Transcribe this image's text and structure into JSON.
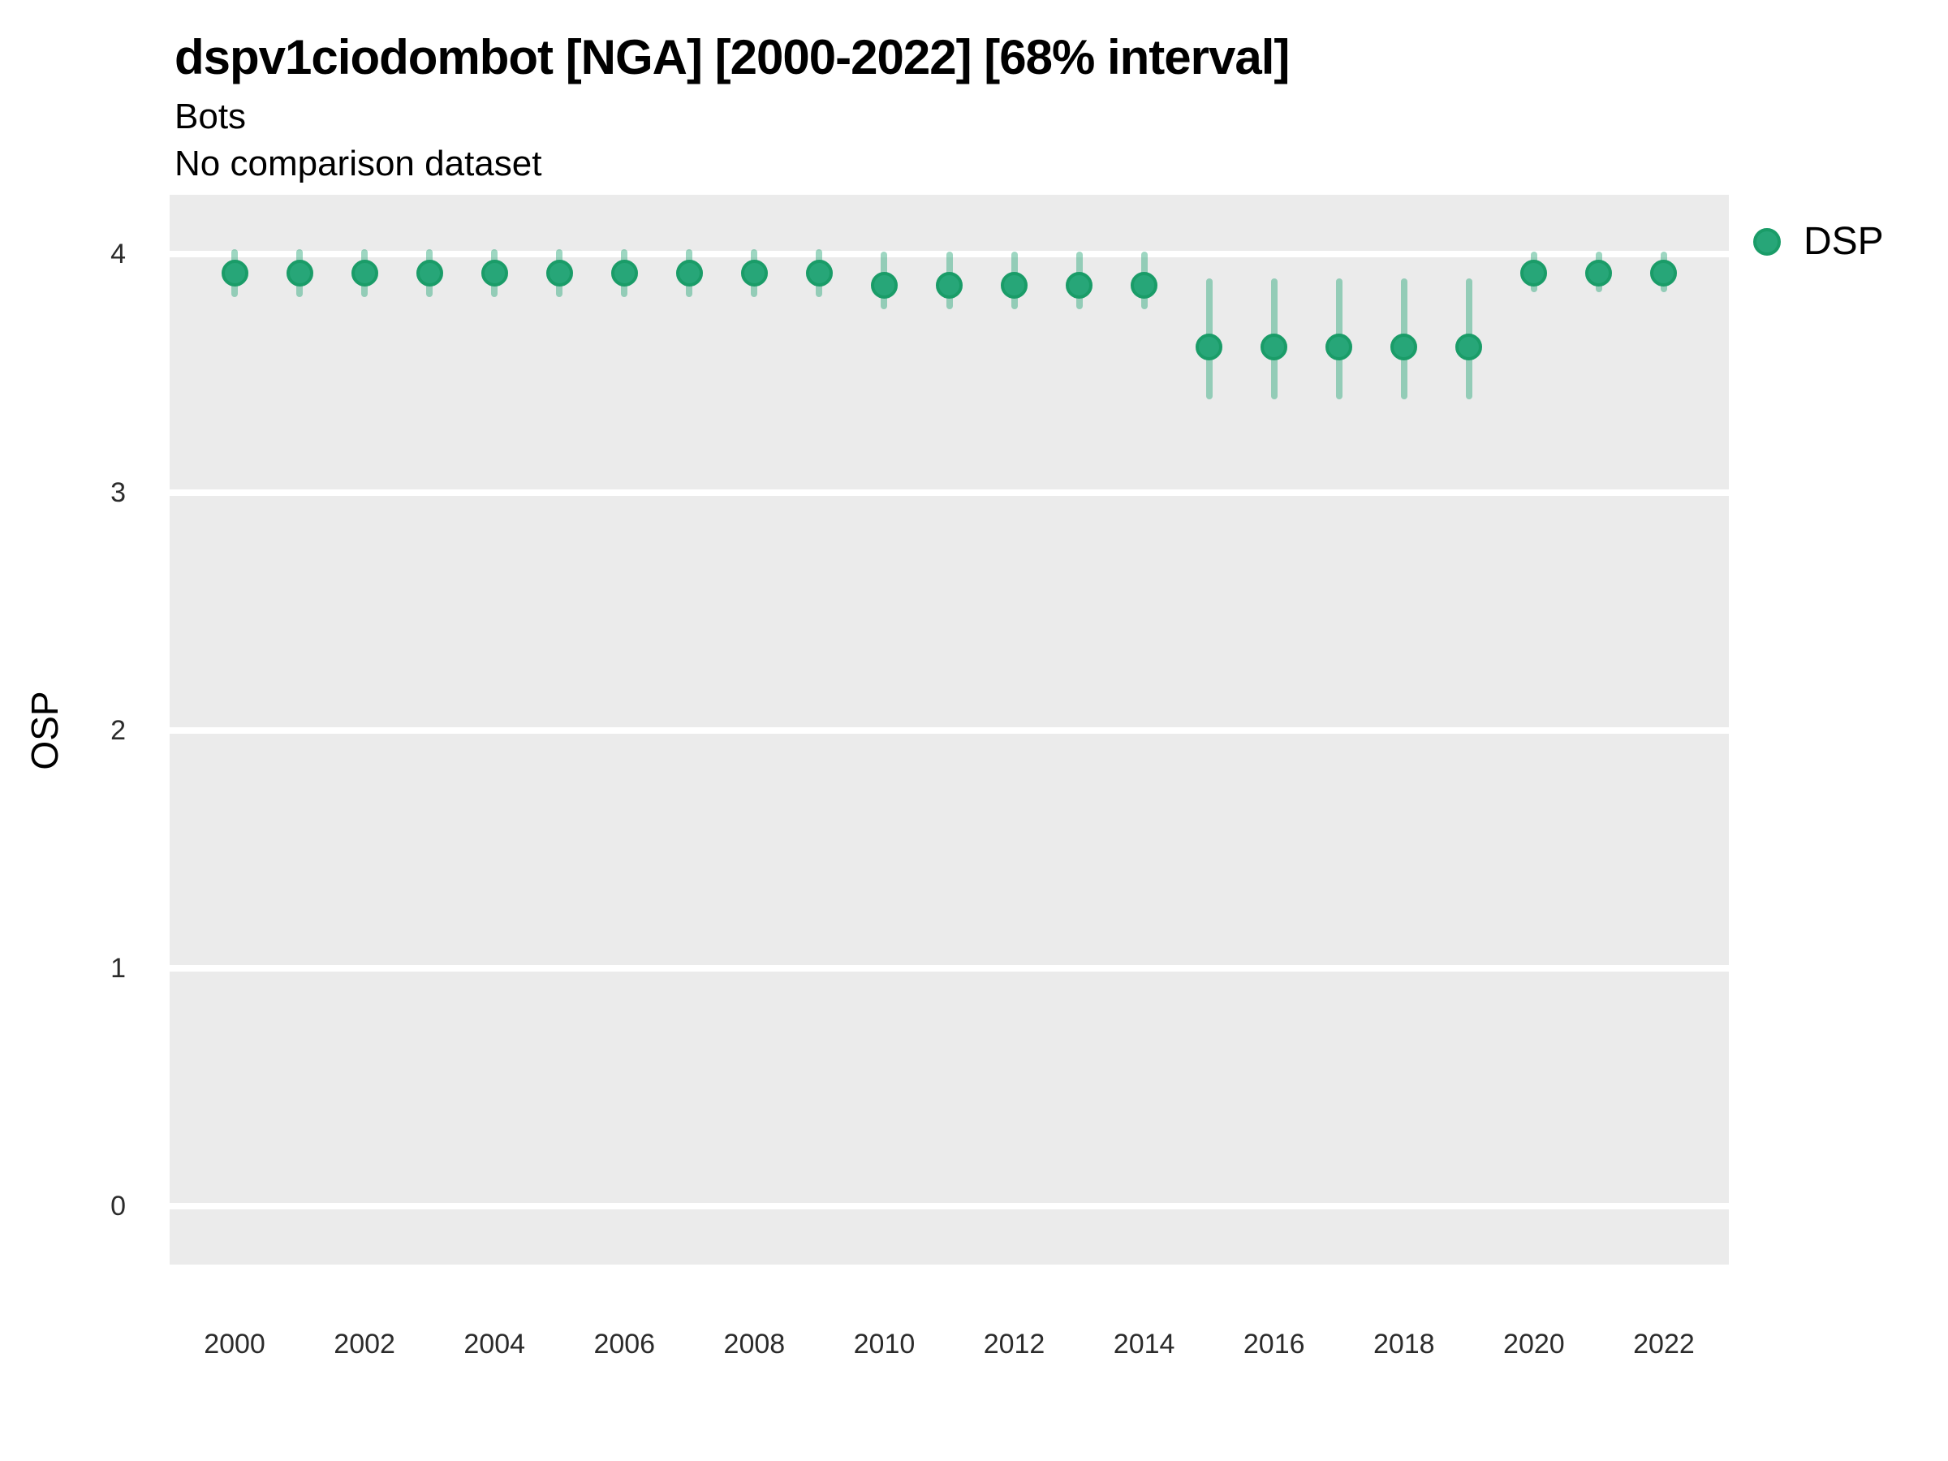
{
  "header": {
    "title": "dspv1ciodombot [NGA] [2000-2022] [68% interval]",
    "subtitle": "Bots",
    "comparison_note": "No comparison dataset"
  },
  "axes": {
    "y_label": "OSP"
  },
  "legend": {
    "items": [
      {
        "label": "DSP",
        "color": "#27a678"
      }
    ]
  },
  "colors": {
    "point_fill": "#27a678",
    "point_border": "#1a9c68",
    "interval_bar": "rgba(39,166,120,0.45)",
    "panel_background": "#ebebeb",
    "gridline": "#ffffff",
    "tick_text": "#2b2b2b"
  },
  "chart_data": {
    "type": "scatter",
    "title": "dspv1ciodombot [NGA] [2000-2022] [68% interval]",
    "subtitle": "Bots",
    "note": "No comparison dataset",
    "xlabel": "",
    "ylabel": "OSP",
    "interval": "68%",
    "grid": "horizontal-major-only",
    "legend_position": "right",
    "xlim": [
      1999.0,
      2023.0
    ],
    "ylim": [
      -0.245,
      4.25
    ],
    "x_ticks": [
      2000,
      2002,
      2004,
      2006,
      2008,
      2010,
      2012,
      2014,
      2016,
      2018,
      2020,
      2022
    ],
    "y_ticks": [
      0,
      1,
      2,
      3,
      4
    ],
    "series": [
      {
        "name": "DSP",
        "x": [
          2000,
          2001,
          2002,
          2003,
          2004,
          2005,
          2006,
          2007,
          2008,
          2009,
          2010,
          2011,
          2012,
          2013,
          2014,
          2015,
          2016,
          2017,
          2018,
          2019,
          2020,
          2021,
          2022
        ],
        "y": [
          3.92,
          3.92,
          3.92,
          3.92,
          3.92,
          3.92,
          3.92,
          3.92,
          3.92,
          3.92,
          3.87,
          3.87,
          3.87,
          3.87,
          3.87,
          3.61,
          3.61,
          3.61,
          3.61,
          3.61,
          3.92,
          3.92,
          3.92
        ],
        "y_lower": [
          3.82,
          3.82,
          3.82,
          3.82,
          3.82,
          3.82,
          3.82,
          3.82,
          3.82,
          3.82,
          3.77,
          3.77,
          3.77,
          3.77,
          3.77,
          3.39,
          3.39,
          3.39,
          3.39,
          3.39,
          3.84,
          3.84,
          3.84
        ],
        "y_upper": [
          4.02,
          4.02,
          4.02,
          4.02,
          4.02,
          4.02,
          4.02,
          4.02,
          4.02,
          4.02,
          4.01,
          4.01,
          4.01,
          4.01,
          4.01,
          3.9,
          3.9,
          3.9,
          3.9,
          3.9,
          4.01,
          4.01,
          4.01
        ]
      }
    ]
  }
}
